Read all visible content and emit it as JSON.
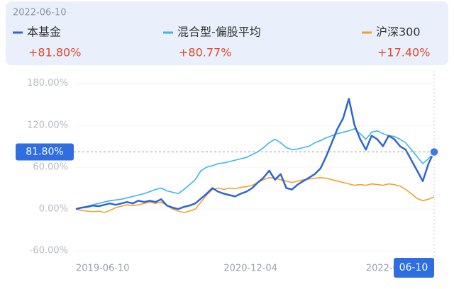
{
  "chart_data": {
    "type": "line",
    "date": "2022-06-10",
    "categories": [
      "2019-06-10",
      null,
      null,
      null,
      null,
      null,
      null,
      null,
      null,
      null,
      null,
      null,
      null,
      null,
      null,
      null,
      null,
      null,
      null,
      null,
      null,
      null,
      null,
      null,
      null,
      null,
      "2020-12-04",
      null,
      null,
      null,
      null,
      null,
      null,
      null,
      null,
      null,
      null,
      null,
      null,
      null,
      null,
      null,
      null,
      null,
      null,
      null,
      null,
      null,
      null,
      null,
      null,
      "2022-06-10",
      null,
      null,
      null,
      null,
      null,
      null,
      null,
      null,
      null,
      null,
      null,
      null
    ],
    "series": [
      {
        "name": "本基金",
        "color": "#2f64d6",
        "total_return": 81.8,
        "total_return_label": "+81.80%",
        "values": [
          0,
          2,
          3,
          5,
          4,
          6,
          8,
          6,
          8,
          10,
          8,
          12,
          10,
          12,
          10,
          14,
          5,
          2,
          0,
          3,
          5,
          8,
          15,
          22,
          30,
          25,
          22,
          20,
          18,
          22,
          25,
          30,
          38,
          45,
          55,
          42,
          50,
          30,
          28,
          35,
          40,
          45,
          50,
          58,
          75,
          95,
          115,
          130,
          158,
          120,
          100,
          85,
          105,
          100,
          90,
          105,
          100,
          90,
          85,
          70,
          55,
          40,
          65,
          81.8
        ]
      },
      {
        "name": "混合型-偏股平均",
        "color": "#3cb5e6",
        "total_return": 80.77,
        "total_return_label": "+80.77%",
        "values": [
          0,
          2,
          4,
          6,
          8,
          10,
          12,
          13,
          14,
          16,
          18,
          20,
          22,
          25,
          28,
          30,
          26,
          24,
          22,
          28,
          35,
          42,
          55,
          60,
          62,
          65,
          66,
          68,
          70,
          72,
          74,
          78,
          82,
          88,
          95,
          100,
          95,
          88,
          85,
          86,
          88,
          90,
          95,
          98,
          102,
          105,
          108,
          110,
          112,
          115,
          108,
          100,
          110,
          112,
          108,
          105,
          104,
          100,
          95,
          85,
          75,
          65,
          72,
          80.77
        ]
      },
      {
        "name": "沪深300",
        "color": "#f0a030",
        "total_return": 17.4,
        "total_return_label": "+17.40%",
        "values": [
          0,
          -2,
          -3,
          -4,
          -3,
          -5,
          -2,
          2,
          4,
          6,
          5,
          6,
          8,
          10,
          8,
          10,
          5,
          0,
          -3,
          -5,
          -3,
          0,
          10,
          20,
          28,
          30,
          28,
          30,
          29,
          31,
          32,
          34,
          38,
          42,
          45,
          44,
          42,
          40,
          38,
          40,
          42,
          43,
          44,
          45,
          44,
          42,
          40,
          38,
          36,
          34,
          35,
          34,
          36,
          35,
          34,
          36,
          35,
          33,
          28,
          22,
          15,
          12,
          14,
          17.4
        ]
      }
    ],
    "marker": {
      "value": 81.8,
      "label": "81.80%"
    },
    "end_badge": "06-10",
    "ylim": [
      -74,
      198
    ],
    "yticks": [
      {
        "value": -60,
        "label": "-60.00%"
      },
      {
        "value": 0,
        "label": "0.00%"
      },
      {
        "value": 60,
        "label": "60.00%"
      },
      {
        "value": 120,
        "label": "120.00%"
      },
      {
        "value": 180,
        "label": "180.00%"
      }
    ],
    "grid": true
  }
}
